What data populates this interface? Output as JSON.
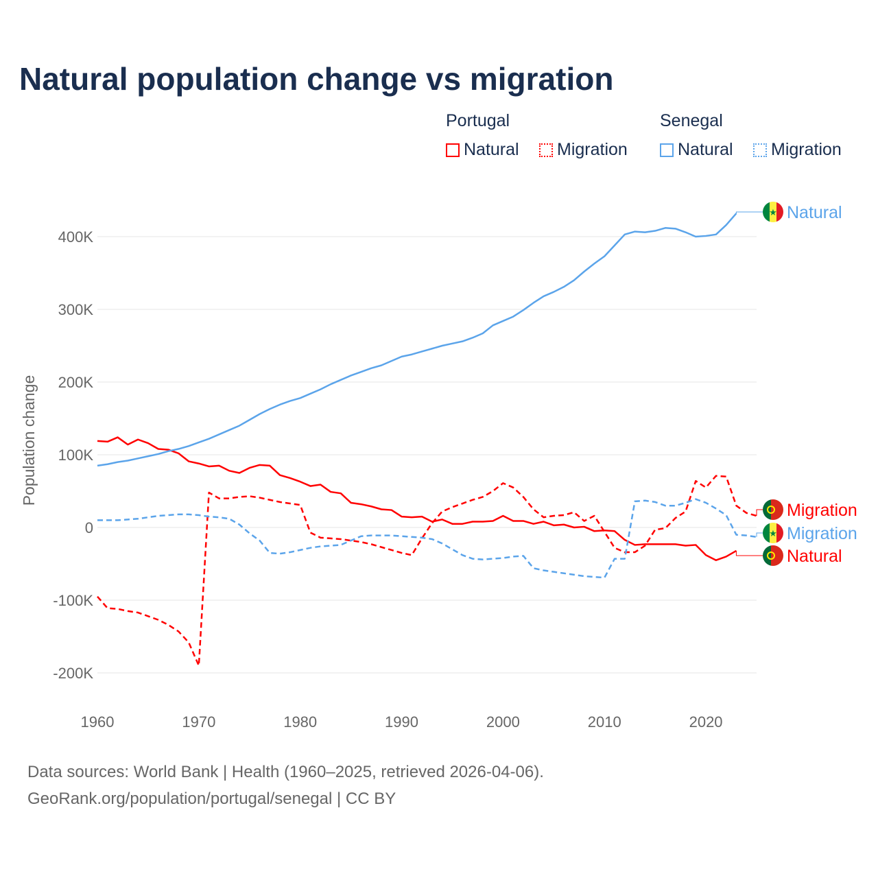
{
  "title": "Natural population change vs migration",
  "legend": {
    "groups": [
      {
        "name": "Portugal",
        "items": [
          "Natural",
          "Migration"
        ]
      },
      {
        "name": "Senegal",
        "items": [
          "Natural",
          "Migration"
        ]
      }
    ]
  },
  "footer": {
    "line1": "Data sources: World Bank | Health (1960–2025, retrieved 2026-04-06).",
    "line2": "GeoRank.org/population/portugal/senegal | CC BY"
  },
  "colors": {
    "portugal": "#ff0000",
    "senegal": "#5ba4ea"
  },
  "chart_data": {
    "type": "line",
    "title": "Natural population change vs migration",
    "xlabel": "",
    "ylabel": "Population change",
    "xlim": [
      1960,
      2025
    ],
    "ylim": [
      -200000,
      430000
    ],
    "x_ticks": [
      "1960",
      "1970",
      "1980",
      "1990",
      "2000",
      "2010",
      "2020"
    ],
    "y_ticks": [
      {
        "v": -200000,
        "label": "-200K"
      },
      {
        "v": -100000,
        "label": "-100K"
      },
      {
        "v": 0,
        "label": "0"
      },
      {
        "v": 100000,
        "label": "100K"
      },
      {
        "v": 200000,
        "label": "200K"
      },
      {
        "v": 300000,
        "label": "300K"
      },
      {
        "v": 400000,
        "label": "400K"
      }
    ],
    "start_year": 1960,
    "series": [
      {
        "name": "Portugal Natural",
        "end_label": "Natural",
        "country": "portugal",
        "dashed": false,
        "values_k": [
          119,
          118,
          124,
          114,
          121,
          116,
          108,
          107,
          102,
          91,
          88,
          84,
          85,
          78,
          75,
          82,
          86,
          85,
          72,
          68,
          63,
          57,
          59,
          49,
          47,
          34,
          32,
          29,
          25,
          24,
          15,
          14,
          15,
          8,
          11,
          5,
          5,
          8,
          8,
          9,
          16,
          9,
          9,
          5,
          8,
          3,
          4,
          0,
          1,
          -5,
          -4,
          -5,
          -17,
          -24,
          -23,
          -23,
          -23,
          -23,
          -25,
          -24,
          -38,
          -45,
          -40,
          -32
        ]
      },
      {
        "name": "Portugal Migration",
        "end_label": "Migration",
        "country": "portugal",
        "dashed": true,
        "values_k": [
          -95,
          -111,
          -112,
          -115,
          -117,
          -122,
          -127,
          -134,
          -143,
          -158,
          -190,
          48,
          40,
          40,
          42,
          43,
          41,
          38,
          35,
          33,
          31,
          -7,
          -14,
          -15,
          -16,
          -18,
          -20,
          -23,
          -27,
          -31,
          -35,
          -38,
          -15,
          6,
          22,
          28,
          33,
          38,
          42,
          50,
          61,
          55,
          42,
          25,
          14,
          16,
          17,
          21,
          9,
          16,
          -6,
          -28,
          -34,
          -34,
          -25,
          -3,
          -1,
          13,
          22,
          64,
          55,
          71,
          70,
          30,
          20,
          16
        ]
      },
      {
        "name": "Senegal Natural",
        "end_label": "Natural",
        "country": "senegal",
        "dashed": false,
        "values_k": [
          85,
          87,
          90,
          92,
          95,
          98,
          101,
          105,
          108,
          112,
          117,
          122,
          128,
          134,
          140,
          148,
          156,
          163,
          169,
          174,
          178,
          184,
          190,
          197,
          203,
          209,
          214,
          219,
          223,
          229,
          235,
          238,
          242,
          246,
          250,
          253,
          256,
          261,
          267,
          278,
          284,
          290,
          299,
          309,
          318,
          324,
          331,
          340,
          352,
          363,
          373,
          388,
          403,
          407,
          406,
          408,
          412,
          411,
          406,
          400,
          401,
          403,
          416,
          432
        ]
      },
      {
        "name": "Senegal Migration",
        "end_label": "Migration",
        "country": "senegal",
        "dashed": true,
        "values_k": [
          10,
          10,
          10,
          11,
          12,
          14,
          16,
          17,
          18,
          18,
          17,
          15,
          14,
          12,
          4,
          -8,
          -18,
          -35,
          -36,
          -34,
          -31,
          -28,
          -26,
          -25,
          -24,
          -18,
          -12,
          -11,
          -11,
          -11,
          -12,
          -13,
          -14,
          -16,
          -22,
          -30,
          -38,
          -43,
          -44,
          -43,
          -42,
          -40,
          -39,
          -56,
          -59,
          -61,
          -63,
          -65,
          -67,
          -68,
          -69,
          -43,
          -43,
          36,
          37,
          35,
          30,
          30,
          34,
          39,
          34,
          26,
          17,
          -10,
          -11,
          -13
        ]
      }
    ]
  }
}
